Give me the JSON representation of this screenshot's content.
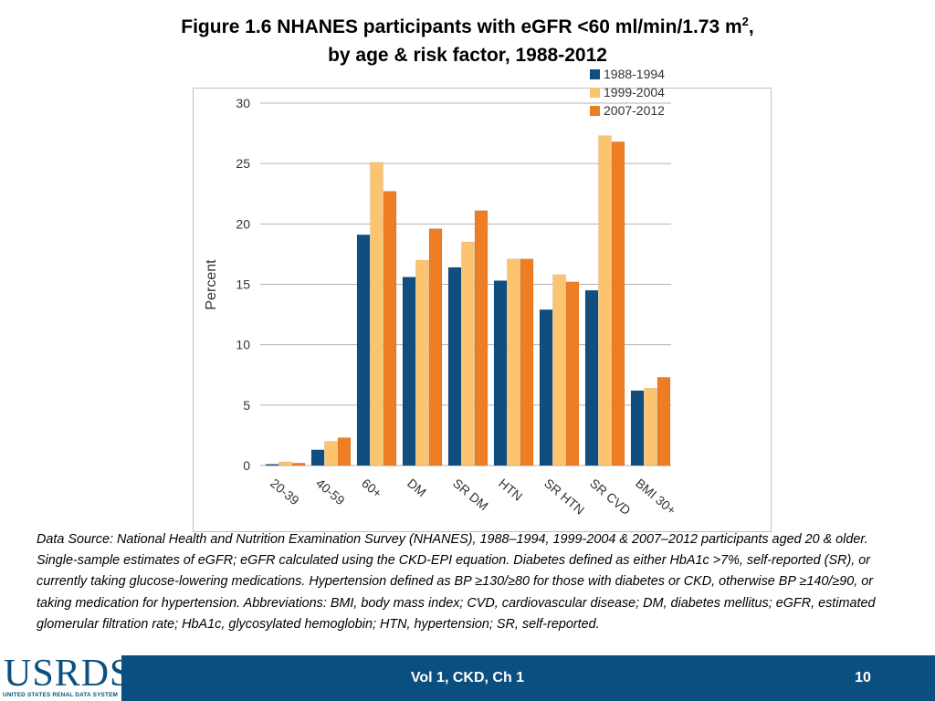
{
  "title": {
    "line1_prefix": "Figure 1.6 NHANES participants with eGFR <60 ml/min/1.73 m",
    "line1_sup": "2",
    "line1_suffix": ",",
    "line2": "by age & risk factor, 1988-2012"
  },
  "chart_data": {
    "type": "bar",
    "ylabel": "Percent",
    "xlabel": "",
    "ylim": [
      0,
      30
    ],
    "yticks": [
      0,
      5,
      10,
      15,
      20,
      25,
      30
    ],
    "grid": true,
    "legend_position": "top-right",
    "categories": [
      "20-39",
      "40-59",
      "60+",
      "DM",
      "SR DM",
      "HTN",
      "SR HTN",
      "SR CVD",
      "BMI 30+"
    ],
    "series": [
      {
        "name": "1988-1994",
        "color": "#0f4e7f",
        "values": [
          0.1,
          1.3,
          19.1,
          15.6,
          16.4,
          15.3,
          12.9,
          14.5,
          6.2
        ]
      },
      {
        "name": "1999-2004",
        "color": "#fcc46f",
        "values": [
          0.3,
          2.0,
          25.1,
          17.0,
          18.5,
          17.1,
          15.8,
          27.3,
          6.4
        ]
      },
      {
        "name": "2007-2012",
        "color": "#ee7d23",
        "values": [
          0.2,
          2.3,
          22.7,
          19.6,
          21.1,
          17.1,
          15.2,
          26.8,
          7.3
        ]
      }
    ]
  },
  "source_text": "Data Source: National Health and Nutrition Examination Survey (NHANES), 1988–1994, 1999-2004 & 2007–2012 participants aged 20 & older. Single-sample estimates of eGFR; eGFR calculated using the CKD-EPI equation. Diabetes defined as either HbA1c >7%, self-reported (SR), or currently taking glucose-lowering medications. Hypertension defined as BP ≥130/≥80 for those with diabetes or CKD, otherwise BP ≥140/≥90, or taking medication for hypertension. Abbreviations: BMI, body mass index; CVD, cardiovascular disease; DM, diabetes mellitus; eGFR, estimated glomerular filtration rate; HbA1c, glycosylated hemoglobin; HTN, hypertension; SR, self-reported.",
  "footer": {
    "logo_text": "USRDS",
    "logo_subtext": "UNITED STATES RENAL DATA SYSTEM",
    "center_text": "Vol 1, CKD, Ch 1",
    "page_number": "10"
  }
}
